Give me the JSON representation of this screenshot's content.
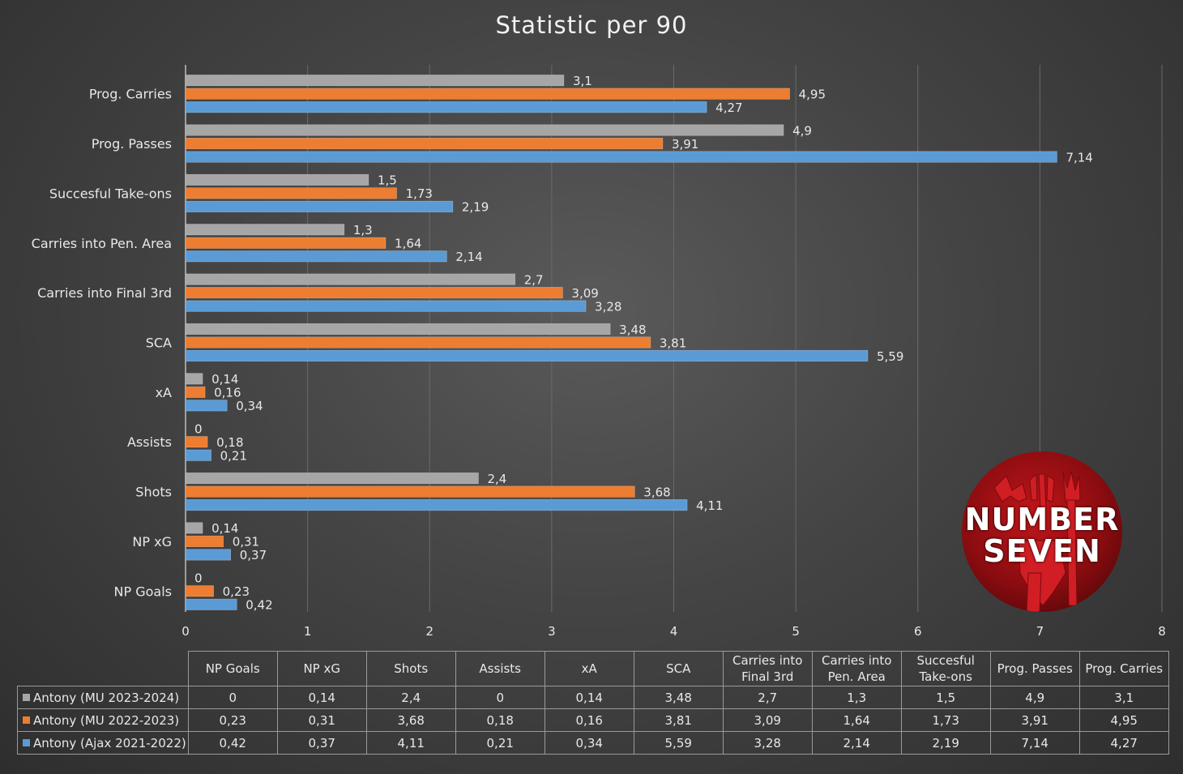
{
  "chart_data": {
    "type": "bar",
    "orientation": "horizontal",
    "title": "Statistic per 90",
    "categories": [
      "NP Goals",
      "NP xG",
      "Shots",
      "Assists",
      "xA",
      "SCA",
      "Carries into Final 3rd",
      "Carries into Pen. Area",
      "Succesful Take-ons",
      "Prog. Passes",
      "Prog. Carries"
    ],
    "table_headers": [
      [
        "NP Goals"
      ],
      [
        "NP xG"
      ],
      [
        "Shots"
      ],
      [
        "Assists"
      ],
      [
        "xA"
      ],
      [
        "SCA"
      ],
      [
        "Carries into",
        "Final 3rd"
      ],
      [
        "Carries into",
        "Pen. Area"
      ],
      [
        "Succesful",
        "Take-ons"
      ],
      [
        "Prog. Passes"
      ],
      [
        "Prog. Carries"
      ]
    ],
    "series": [
      {
        "name": "Antony (MU 2023-2024)",
        "color": "#a6a6a6",
        "values": [
          0,
          0.14,
          2.4,
          0,
          0.14,
          3.48,
          2.7,
          1.3,
          1.5,
          4.9,
          3.1
        ],
        "labels": [
          "0",
          "0,14",
          "2,4",
          "0",
          "0,14",
          "3,48",
          "2,7",
          "1,3",
          "1,5",
          "4,9",
          "3,1"
        ]
      },
      {
        "name": "Antony (MU 2022-2023)",
        "color": "#ed7d31",
        "values": [
          0.23,
          0.31,
          3.68,
          0.18,
          0.16,
          3.81,
          3.09,
          1.64,
          1.73,
          3.91,
          4.95
        ],
        "labels": [
          "0,23",
          "0,31",
          "3,68",
          "0,18",
          "0,16",
          "3,81",
          "3,09",
          "1,64",
          "1,73",
          "3,91",
          "4,95"
        ]
      },
      {
        "name": "Antony (Ajax 2021-2022)",
        "color": "#5b9bd5",
        "values": [
          0.42,
          0.37,
          4.11,
          0.21,
          0.34,
          5.59,
          3.28,
          2.14,
          2.19,
          7.14,
          4.27
        ],
        "labels": [
          "0,42",
          "0,37",
          "4,11",
          "0,21",
          "0,34",
          "5,59",
          "3,28",
          "2,14",
          "2,19",
          "7,14",
          "4,27"
        ]
      }
    ],
    "xlim": [
      0,
      8
    ],
    "xticks": [
      0,
      1,
      2,
      3,
      4,
      5,
      6,
      7,
      8
    ],
    "grid": "vertical",
    "legend": "data table below chart"
  },
  "logo": {
    "line1": "NUMBER",
    "line2": "SEVEN"
  }
}
